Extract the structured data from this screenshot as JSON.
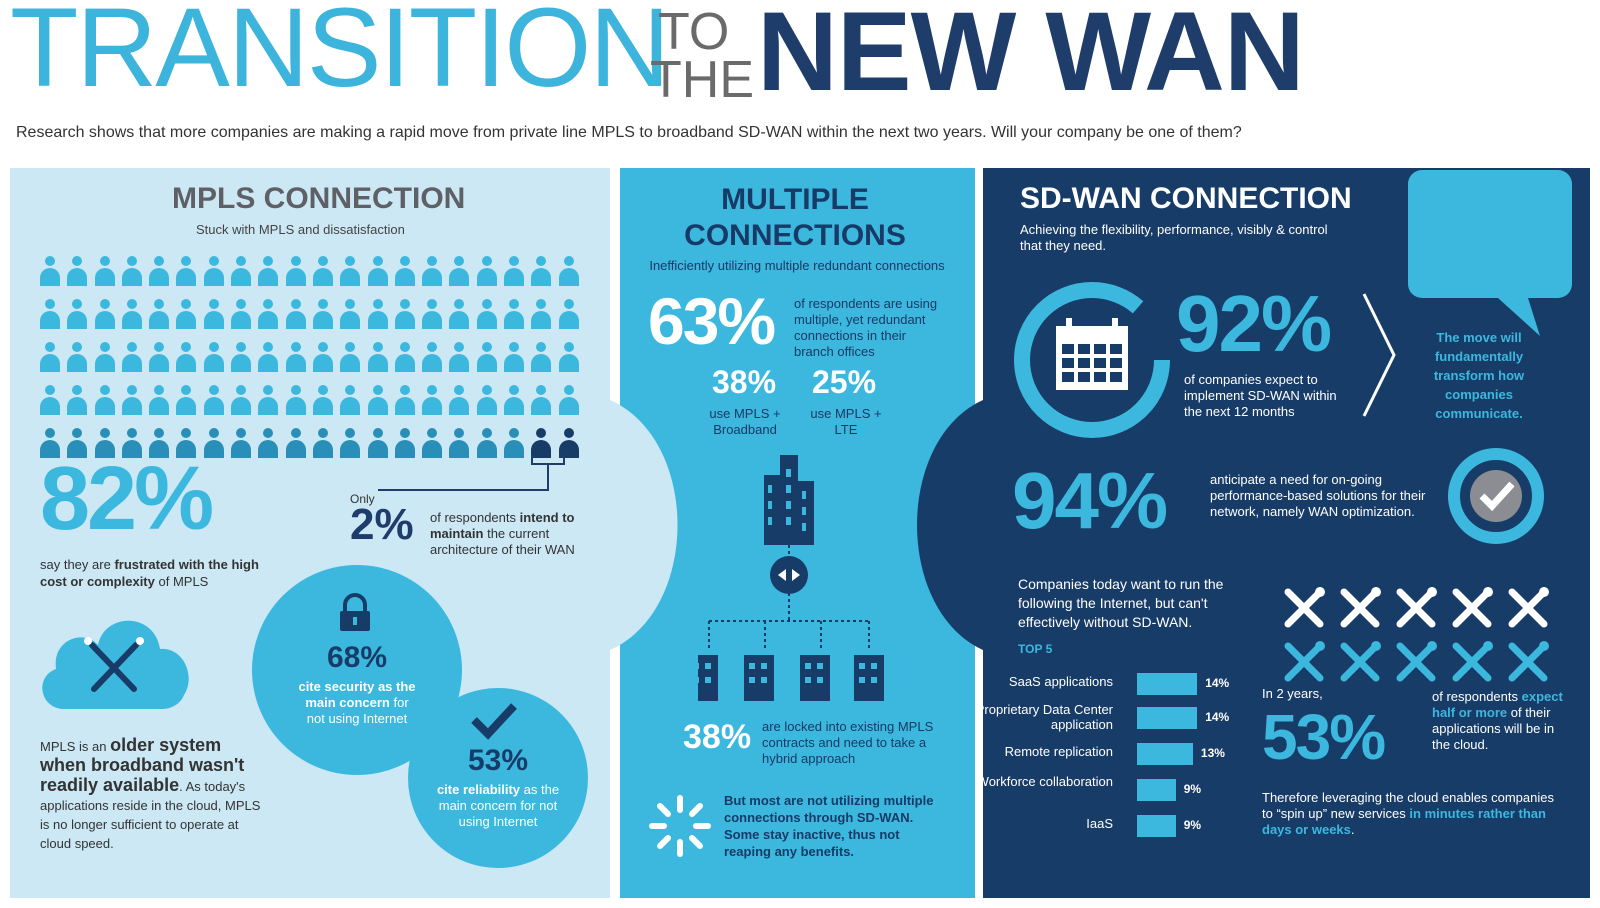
{
  "title": {
    "part1": "TRANSITION",
    "to": "TO",
    "the": "THE",
    "part2": "NEW WAN"
  },
  "intro": "Research shows that more companies are making a rapid move from private line MPLS to broadband SD-WAN within the next two years. Will your company be one of them?",
  "colors": {
    "light_blue": "#3cb8df",
    "navy": "#183c68",
    "pale": "#cbe8f4",
    "mid_blue": "#2a8fb8",
    "dark_navy": "#1f3d6a"
  },
  "mpls": {
    "heading": "MPLS CONNECTION",
    "subheading": "Stuck with MPLS and dissatisfaction",
    "people_icons": 100,
    "stat82": "82%",
    "stat82_pre": "say they are ",
    "stat82_bold": "frustrated with the high cost or complexity",
    "stat82_post": " of MPLS",
    "only_label": "Only",
    "stat2": "2%",
    "stat2_pre": "of respondents ",
    "stat2_bold": "intend to maintain",
    "stat2_post": " the current architecture of their WAN",
    "older_pre": "MPLS is an ",
    "older_bold": "older system when broadband wasn't readily available",
    "older_post": ". As today's applications reside in the cloud, MPLS is no longer sufficient to operate at cloud speed.",
    "security_pct": "68%",
    "security_bold": "cite security as the main concern",
    "security_post": " for not using Internet",
    "reliability_pct": "53%",
    "reliability_bold": "cite reliability",
    "reliability_post": " as the main concern for not using Internet"
  },
  "multiple": {
    "heading_line1": "MULTIPLE",
    "heading_line2": "CONNECTIONS",
    "subheading": "Inefficiently utilizing multiple redundant connections",
    "stat63": "63%",
    "stat63_text": "of respondents are using multiple, yet redundant connections in their branch offices",
    "stat38a": "38%",
    "stat38a_text": "use MPLS + Broadband",
    "stat25": "25%",
    "stat25_text": "use MPLS + LTE",
    "stat38b": "38%",
    "stat38b_text": "are locked into existing MPLS contracts and need to take a hybrid approach",
    "but_text": "But most are not utilizing multiple connections through SD-WAN. Some stay inactive, thus not reaping any benefits."
  },
  "sdwan": {
    "heading": "SD-WAN CONNECTION",
    "subheading": "Achieving the flexibility, performance, visibly & control that they need.",
    "stat92": "92%",
    "stat92_text": "of companies expect to implement SD-WAN within the next 12 months",
    "move_text": "The move will fundamentally transform how companies communicate.",
    "stat94": "94%",
    "stat94_text": "anticipate a need for on-going performance-based solutions for their network, namely WAN optimization.",
    "companies_text": "Companies today want to run the following the Internet, but can't effectively without SD-WAN.",
    "top5_label": "TOP 5",
    "top5": [
      {
        "label": "SaaS applications",
        "value": "14%",
        "pct": 14
      },
      {
        "label": "Proprietary Data Center application",
        "value": "14%",
        "pct": 14
      },
      {
        "label": "Remote replication",
        "value": "13%",
        "pct": 13
      },
      {
        "label": "Workforce collaboration",
        "value": "9%",
        "pct": 9
      },
      {
        "label": "IaaS",
        "value": "9%",
        "pct": 9
      }
    ],
    "in2years": "In 2 years,",
    "stat53": "53%",
    "stat53_pre": "of respondents ",
    "stat53_bold": "expect half or more",
    "stat53_post": " of their applications will be in the cloud.",
    "leverage_pre": "Therefore leveraging the cloud enables companies to “spin up” new services ",
    "leverage_bold": "in minutes rather than days or weeks",
    "leverage_post": "."
  }
}
